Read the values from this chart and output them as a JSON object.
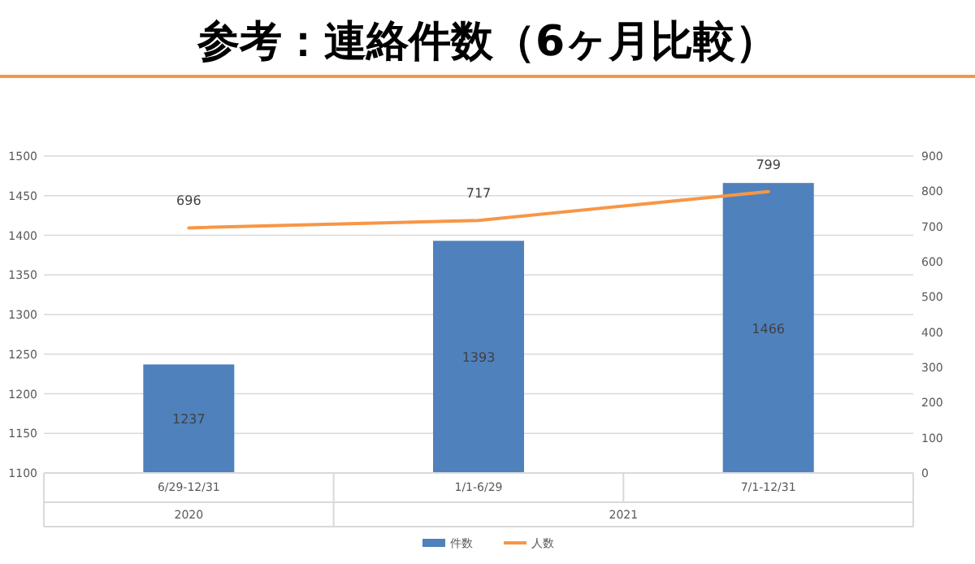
{
  "chart_data": {
    "type": "bar",
    "title": "参考：連絡件数（6ヶ月比較）",
    "categories": [
      "6/29-12/31",
      "1/1-6/29",
      "7/1-12/31"
    ],
    "series": [
      {
        "name": "件数",
        "color": "#4f81bd",
        "values": [
          1237,
          1393,
          1466
        ]
      },
      {
        "name": "人数",
        "type": "line",
        "axis": "y2",
        "color": "#f79646",
        "values": [
          696,
          717,
          799
        ]
      }
    ],
    "ylim": [
      1100,
      1500
    ],
    "yticks": [
      1100,
      1150,
      1200,
      1250,
      1300,
      1350,
      1400,
      1450,
      1500
    ],
    "y2lim": [
      0,
      900
    ],
    "y2ticks": [
      0,
      100,
      200,
      300,
      400,
      500,
      600,
      700,
      800,
      900
    ],
    "annotations": [
      "2020",
      "2021"
    ],
    "grid": "y",
    "legend": "bottom",
    "data_labels": true,
    "marker": "none"
  }
}
